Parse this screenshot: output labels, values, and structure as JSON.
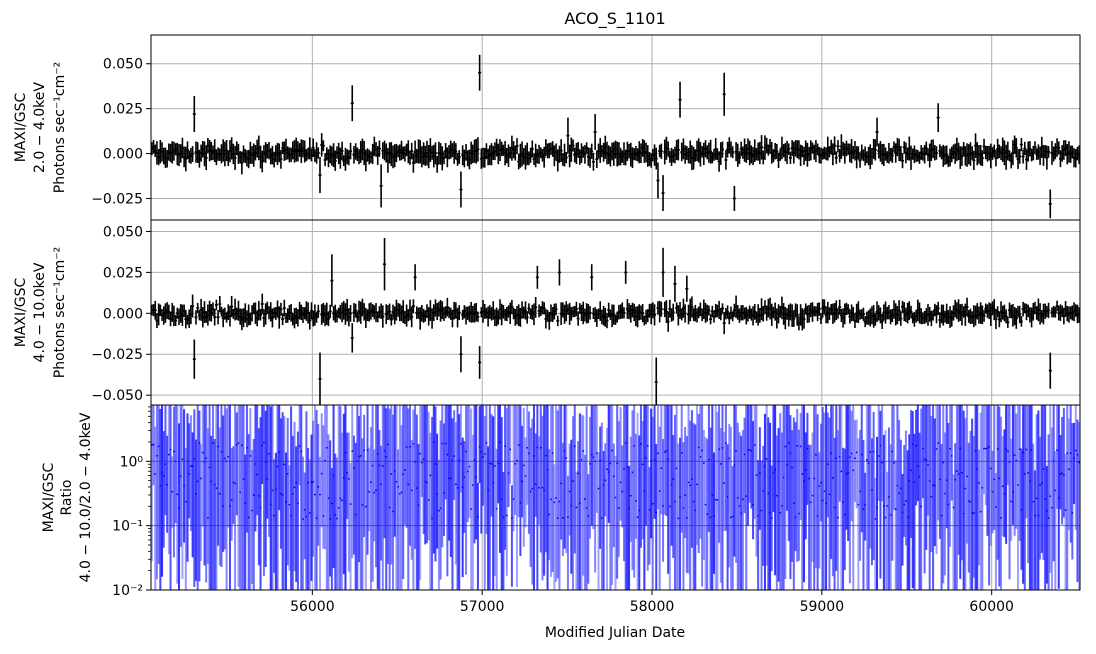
{
  "title": "ACO_S_1101",
  "chart_data": [
    {
      "type": "line",
      "panel": "top",
      "ylabel_lines": [
        "MAXI/GSC",
        "2.0 − 4.0keV",
        "Photons sec⁻¹cm⁻²"
      ],
      "xlim": [
        55050,
        60520
      ],
      "ylim": [
        -0.037,
        0.066
      ],
      "yticks": [
        0.05,
        0.025,
        0.0,
        -0.025
      ],
      "ytick_labels": [
        "0.050",
        "0.025",
        "0.000",
        "−0.025"
      ],
      "grid": true,
      "series": [
        {
          "color": "#000000",
          "style": "errorbar",
          "note_points": "binned light curve ~30-day bins, values near 0 with error bars",
          "x": [
            55300,
            56040,
            56230,
            56400,
            56870,
            56980,
            57500,
            57660,
            58030,
            58060,
            58160,
            58420,
            58480,
            59320,
            59680,
            60340
          ],
          "y": [
            0.022,
            -0.012,
            0.028,
            -0.018,
            -0.02,
            0.045,
            0.01,
            0.012,
            -0.015,
            -0.022,
            0.03,
            0.033,
            -0.025,
            0.012,
            0.02,
            -0.028
          ],
          "yerr": [
            0.01,
            0.01,
            0.01,
            0.012,
            0.01,
            0.01,
            0.01,
            0.01,
            0.01,
            0.01,
            0.01,
            0.012,
            0.007,
            0.008,
            0.008,
            0.008
          ]
        }
      ]
    },
    {
      "type": "line",
      "panel": "middle",
      "ylabel_lines": [
        "MAXI/GSC",
        "4.0 − 10.0keV",
        "Photons sec⁻¹cm⁻²"
      ],
      "xlim": [
        55050,
        60520
      ],
      "ylim": [
        -0.056,
        0.057
      ],
      "yticks": [
        0.05,
        0.025,
        0.0,
        -0.025,
        -0.05
      ],
      "ytick_labels": [
        "0.050",
        "0.025",
        "0.000",
        "−0.025",
        "−0.050"
      ],
      "grid": true,
      "series": [
        {
          "color": "#000000",
          "style": "errorbar",
          "x": [
            55300,
            56040,
            56110,
            56230,
            56420,
            56600,
            56870,
            56980,
            57320,
            57450,
            57640,
            57840,
            58020,
            58060,
            58130,
            58200,
            60340
          ],
          "y": [
            -0.028,
            -0.04,
            0.02,
            -0.015,
            0.03,
            0.022,
            -0.025,
            -0.03,
            0.022,
            0.025,
            0.022,
            0.025,
            -0.042,
            0.025,
            0.018,
            0.015,
            -0.035
          ],
          "yerr": [
            0.012,
            0.016,
            0.016,
            0.009,
            0.016,
            0.008,
            0.011,
            0.01,
            0.007,
            0.008,
            0.008,
            0.007,
            0.015,
            0.015,
            0.011,
            0.008,
            0.011
          ]
        }
      ]
    },
    {
      "type": "line",
      "panel": "bottom",
      "ylabel_lines": [
        "MAXI/GSC",
        "Ratio",
        "4.0 − 10.0/2.0 − 4.0keV"
      ],
      "xlabel": "Modified Julian Date",
      "xlim": [
        55050,
        60520
      ],
      "xticks": [
        56000,
        57000,
        58000,
        59000,
        60000
      ],
      "xtick_labels": [
        "56000",
        "57000",
        "58000",
        "59000",
        "60000"
      ],
      "yscale": "log",
      "ylim": [
        0.01,
        7.5
      ],
      "yticks": [
        1,
        0.1,
        0.01
      ],
      "ytick_labels": [
        "10⁰",
        "10⁻¹",
        "10⁻²"
      ],
      "grid": true,
      "series": [
        {
          "color": "#0000ff",
          "style": "errorbar-dense",
          "note_points": "dense blue ratio error bars spanning most of the log range"
        }
      ]
    }
  ],
  "colors": {
    "data": "#000000",
    "ratio": "#0000ff",
    "grid": "#b0b0b0",
    "axes": "#000000"
  }
}
